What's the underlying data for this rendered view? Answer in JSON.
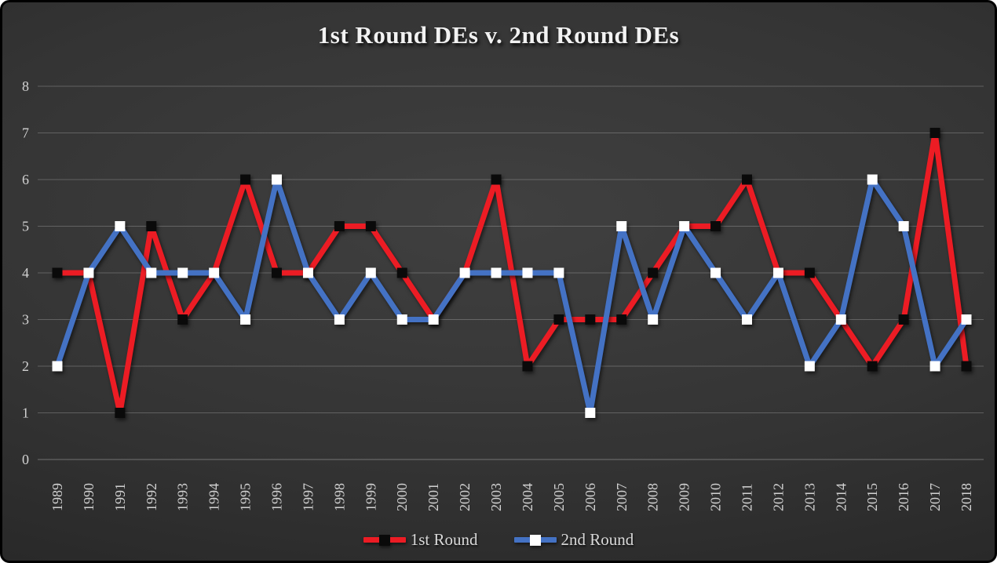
{
  "title": "1st Round DEs v. 2nd Round DEs",
  "legend": {
    "items": [
      {
        "label": "1st Round"
      },
      {
        "label": "2nd Round"
      }
    ]
  },
  "colors": {
    "first_round_line": "#ec1c24",
    "first_round_marker": "#0a0a0a",
    "second_round_line": "#4472c4",
    "second_round_marker": "#ffffff",
    "background_center": "#3d3d3d",
    "background_edge": "#222222",
    "text": "#d2d2d2"
  },
  "chart_data": {
    "type": "line",
    "title": "1st Round DEs v. 2nd Round DEs",
    "categories": [
      "1989",
      "1990",
      "1991",
      "1992",
      "1993",
      "1994",
      "1995",
      "1996",
      "1997",
      "1998",
      "1999",
      "2000",
      "2001",
      "2002",
      "2003",
      "2004",
      "2005",
      "2006",
      "2007",
      "2008",
      "2009",
      "2010",
      "2011",
      "2012",
      "2013",
      "2014",
      "2015",
      "2016",
      "2017",
      "2018"
    ],
    "series": [
      {
        "name": "1st Round",
        "color": "#ec1c24",
        "marker": "black-square",
        "marker_fill": "#0a0a0a",
        "values": [
          4,
          4,
          1,
          5,
          3,
          4,
          6,
          4,
          4,
          5,
          5,
          4,
          3,
          4,
          6,
          2,
          3,
          3,
          3,
          4,
          5,
          5,
          6,
          4,
          4,
          3,
          2,
          3,
          7,
          2
        ]
      },
      {
        "name": "2nd Round",
        "color": "#4472c4",
        "marker": "white-square",
        "marker_fill": "#ffffff",
        "values": [
          2,
          4,
          5,
          4,
          4,
          4,
          3,
          6,
          4,
          3,
          4,
          3,
          3,
          4,
          4,
          4,
          4,
          1,
          5,
          3,
          5,
          4,
          3,
          4,
          2,
          3,
          6,
          5,
          2,
          3
        ]
      }
    ],
    "xlabel": "",
    "ylabel": "",
    "ylim": [
      0,
      8
    ],
    "yticks": [
      0,
      1,
      2,
      3,
      4,
      5,
      6,
      7,
      8
    ],
    "grid": true,
    "legend_position": "bottom"
  }
}
